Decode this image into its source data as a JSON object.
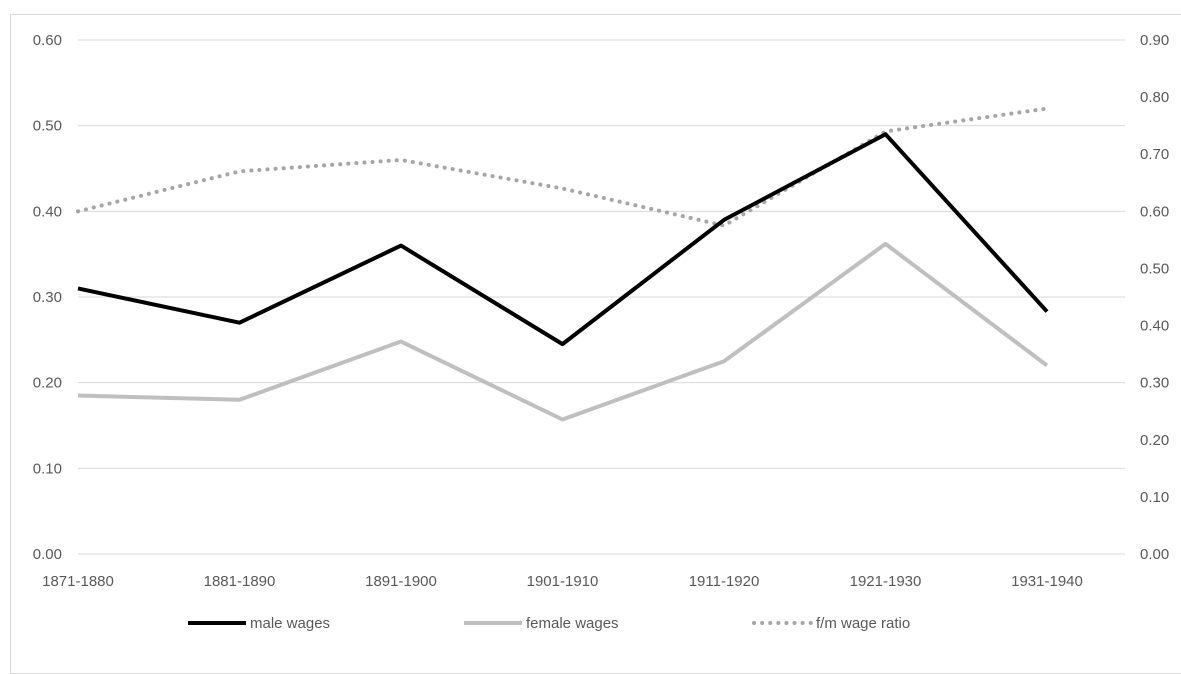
{
  "chart_data": {
    "type": "line",
    "categories": [
      "1871-1880",
      "1881-1890",
      "1891-1900",
      "1901-1910",
      "1911-1920",
      "1921-1930",
      "1931-1940"
    ],
    "series": [
      {
        "name": "male wages",
        "axis": "left",
        "color": "#000000",
        "style": "solid",
        "values": [
          0.31,
          0.27,
          0.36,
          0.245,
          0.39,
          0.49,
          0.283
        ]
      },
      {
        "name": "female wages",
        "axis": "left",
        "color": "#bfbfbf",
        "style": "solid",
        "values": [
          0.185,
          0.18,
          0.248,
          0.157,
          0.225,
          0.362,
          0.22
        ]
      },
      {
        "name": "f/m wage ratio",
        "axis": "right",
        "color": "#a6a6a6",
        "style": "dotted",
        "values": [
          0.6,
          0.67,
          0.69,
          0.64,
          0.575,
          0.74,
          0.78
        ]
      }
    ],
    "y_left": {
      "ylim": [
        0,
        0.6
      ],
      "ticks": [
        "0.00",
        "0.10",
        "0.20",
        "0.30",
        "0.40",
        "0.50",
        "0.60"
      ]
    },
    "y_right": {
      "ylim": [
        0,
        0.9
      ],
      "ticks": [
        "0.00",
        "0.10",
        "0.20",
        "0.30",
        "0.40",
        "0.50",
        "0.60",
        "0.70",
        "0.80",
        "0.90"
      ]
    },
    "grid": true,
    "legend": "bottom",
    "title": "",
    "xlabel": "",
    "ylabel": ""
  }
}
